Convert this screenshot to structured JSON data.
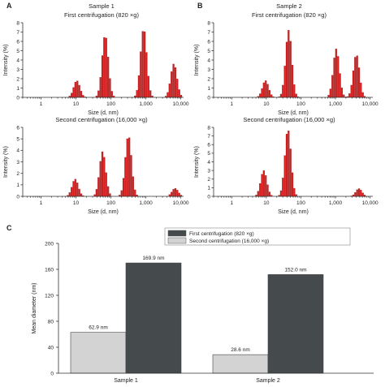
{
  "chart_data": [
    {
      "type": "bar",
      "panel": "A",
      "title": "Sample 1",
      "subtitle": "First centrifugation (820 ×g)",
      "xlabel": "Size (d, nm)",
      "ylabel": "Intensity (%)",
      "xscale": "log",
      "xlim": [
        0.3,
        12000
      ],
      "ylim": [
        0,
        8
      ],
      "xticks": [
        "1",
        "10",
        "100",
        "1,000",
        "10,000"
      ],
      "yticks": [
        "0",
        "1",
        "2",
        "3",
        "4",
        "5",
        "6",
        "7",
        "8"
      ],
      "color": "#d42020",
      "peaks": [
        {
          "center_nm": 10,
          "height": 1.8
        },
        {
          "center_nm": 65,
          "height": 6.7
        },
        {
          "center_nm": 820,
          "height": 7.4
        },
        {
          "center_nm": 6000,
          "height": 3.6
        }
      ]
    },
    {
      "type": "bar",
      "panel": "A",
      "title": "",
      "subtitle": "Second centrifugation (16,000 ×g)",
      "xlabel": "Size (d, nm)",
      "ylabel": "Intensity (%)",
      "xscale": "log",
      "xlim": [
        0.3,
        12000
      ],
      "ylim": [
        0,
        6
      ],
      "xticks": [
        "1",
        "10",
        "100",
        "1,000",
        "10,000"
      ],
      "yticks": [
        "0",
        "1",
        "2",
        "3",
        "4",
        "5",
        "6"
      ],
      "color": "#d42020",
      "peaks": [
        {
          "center_nm": 9,
          "height": 1.5
        },
        {
          "center_nm": 55,
          "height": 3.9
        },
        {
          "center_nm": 300,
          "height": 5.3
        },
        {
          "center_nm": 6500,
          "height": 0.7
        }
      ]
    },
    {
      "type": "bar",
      "panel": "B",
      "title": "Sample 2",
      "subtitle": "First centrifugation (820 ×g)",
      "xlabel": "Size (d, nm)",
      "ylabel": "Intensity (%)",
      "xscale": "log",
      "xlim": [
        0.3,
        12000
      ],
      "ylim": [
        0,
        8
      ],
      "xticks": [
        "1",
        "10",
        "100",
        "1,000",
        "10,000"
      ],
      "yticks": [
        "0",
        "1",
        "2",
        "3",
        "4",
        "5",
        "6",
        "7",
        "8"
      ],
      "color": "#d42020",
      "peaks": [
        {
          "center_nm": 9,
          "height": 1.8
        },
        {
          "center_nm": 42,
          "height": 7.2
        },
        {
          "center_nm": 1000,
          "height": 5.2
        },
        {
          "center_nm": 3800,
          "height": 4.6
        }
      ]
    },
    {
      "type": "bar",
      "panel": "B",
      "title": "",
      "subtitle": "Second centrifugation (16,000 ×g)",
      "xlabel": "Size (d, nm)",
      "ylabel": "Intensity (%)",
      "xscale": "log",
      "xlim": [
        0.3,
        12000
      ],
      "ylim": [
        0,
        8
      ],
      "xticks": [
        "1",
        "10",
        "100",
        "1,000",
        "10,000"
      ],
      "yticks": [
        "0",
        "1",
        "2",
        "3",
        "4",
        "5",
        "6",
        "7",
        "8"
      ],
      "color": "#d42020",
      "peaks": [
        {
          "center_nm": 8,
          "height": 3.0
        },
        {
          "center_nm": 40,
          "height": 7.8
        },
        {
          "center_nm": 4500,
          "height": 0.9
        }
      ]
    },
    {
      "type": "bar",
      "panel": "C",
      "title": "",
      "xlabel": "",
      "ylabel": "Mean diameter (nm)",
      "ylim": [
        0,
        200
      ],
      "yticks": [
        "0",
        "40",
        "80",
        "120",
        "160",
        "200"
      ],
      "categories": [
        "Sample 1",
        "Sample 2"
      ],
      "legend_position": "top-right",
      "series": [
        {
          "name": "First centrifugation (820 ×g)",
          "values": [
            169.9,
            152.0
          ],
          "labels": [
            "169.9 nm",
            "152.0 nm"
          ],
          "color": "#454b4d"
        },
        {
          "name": "Second centrifugation (16,000 ×g)",
          "values": [
            62.9,
            28.6
          ],
          "labels": [
            "62.9 nm",
            "28.6 nm"
          ],
          "color": "#d3d3d3"
        }
      ]
    }
  ]
}
